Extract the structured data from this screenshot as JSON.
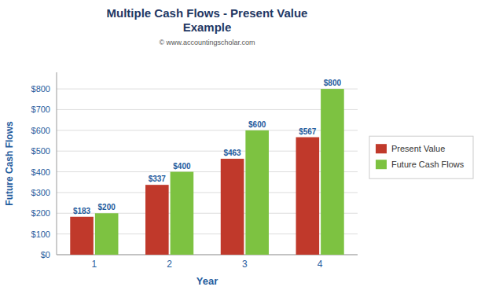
{
  "chart_data": {
    "type": "bar",
    "title": "Multiple Cash Flows - Present Value\nExample",
    "subtitle": "© www.accountingscholar.com",
    "x_label": "Year",
    "y_label": "Future Cash Flows",
    "categories": [
      "1",
      "2",
      "3",
      "4"
    ],
    "series": [
      {
        "name": "Present Value",
        "color": "#C0392B",
        "values": [
          183,
          337,
          463,
          567
        ],
        "value_labels": [
          "$183",
          "$337",
          "$463",
          "$567"
        ]
      },
      {
        "name": "Future Cash Flows",
        "color": "#7DC241",
        "values": [
          200,
          400,
          600,
          800
        ],
        "value_labels": [
          "$200",
          "$400",
          "$600",
          "$800"
        ]
      }
    ],
    "ylim": [
      0,
      880
    ],
    "yticks": [
      {
        "value": 0,
        "label": "$0"
      },
      {
        "value": 100,
        "label": "$100"
      },
      {
        "value": 200,
        "label": "$200"
      },
      {
        "value": 300,
        "label": "$300"
      },
      {
        "value": 400,
        "label": "$400"
      },
      {
        "value": 500,
        "label": "$500"
      },
      {
        "value": 600,
        "label": "$600"
      },
      {
        "value": 700,
        "label": "$700"
      },
      {
        "value": 800,
        "label": "$800"
      }
    ],
    "grid": true,
    "legend": "right",
    "data_labels": true
  }
}
